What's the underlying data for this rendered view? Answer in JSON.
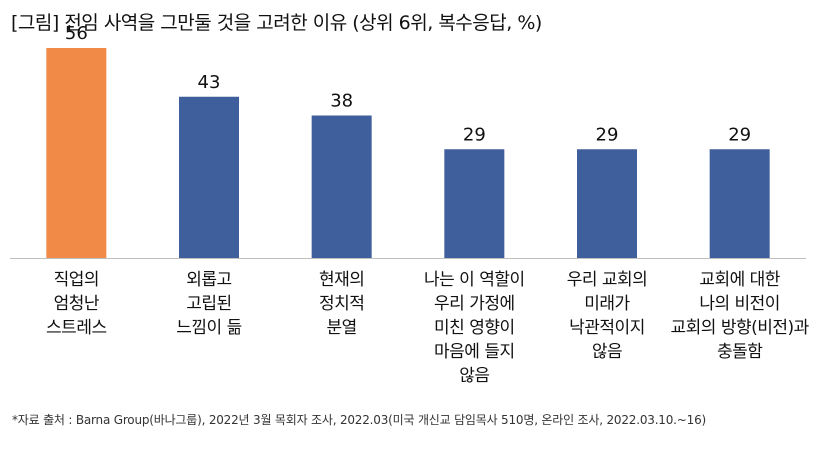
{
  "title": "[그림] 전임 사역을 그만둘 것을 고려한 이유 (상위 6위, 복수응답, %)",
  "footnote": "*자료 출처 : Barna Group(바나그룹), 2022년 3월 목회자 조사, 2022.03(미국 개신교 담임목사 510명, 온라인 조사, 2022.03.10.~16)",
  "chart_data": {
    "type": "bar",
    "categories": [
      "직업의\n엄청난\n스트레스",
      "외롭고\n고립된\n느낌이 듦",
      "현재의\n정치적\n분열",
      "나는 이 역할이\n우리 가정에\n미친 영향이\n마음에 들지\n않음",
      "우리 교회의\n미래가\n낙관적이지\n않음",
      "교회에 대한\n나의 비전이\n교회의 방향(비전)과\n충돌함"
    ],
    "values": [
      56,
      43,
      38,
      29,
      29,
      29
    ],
    "colors": [
      "#F08A46",
      "#3E5F9C",
      "#3E5F9C",
      "#3E5F9C",
      "#3E5F9C",
      "#3E5F9C"
    ],
    "ylim": [
      0,
      56
    ],
    "grid": false,
    "xlabel": "",
    "ylabel": ""
  }
}
